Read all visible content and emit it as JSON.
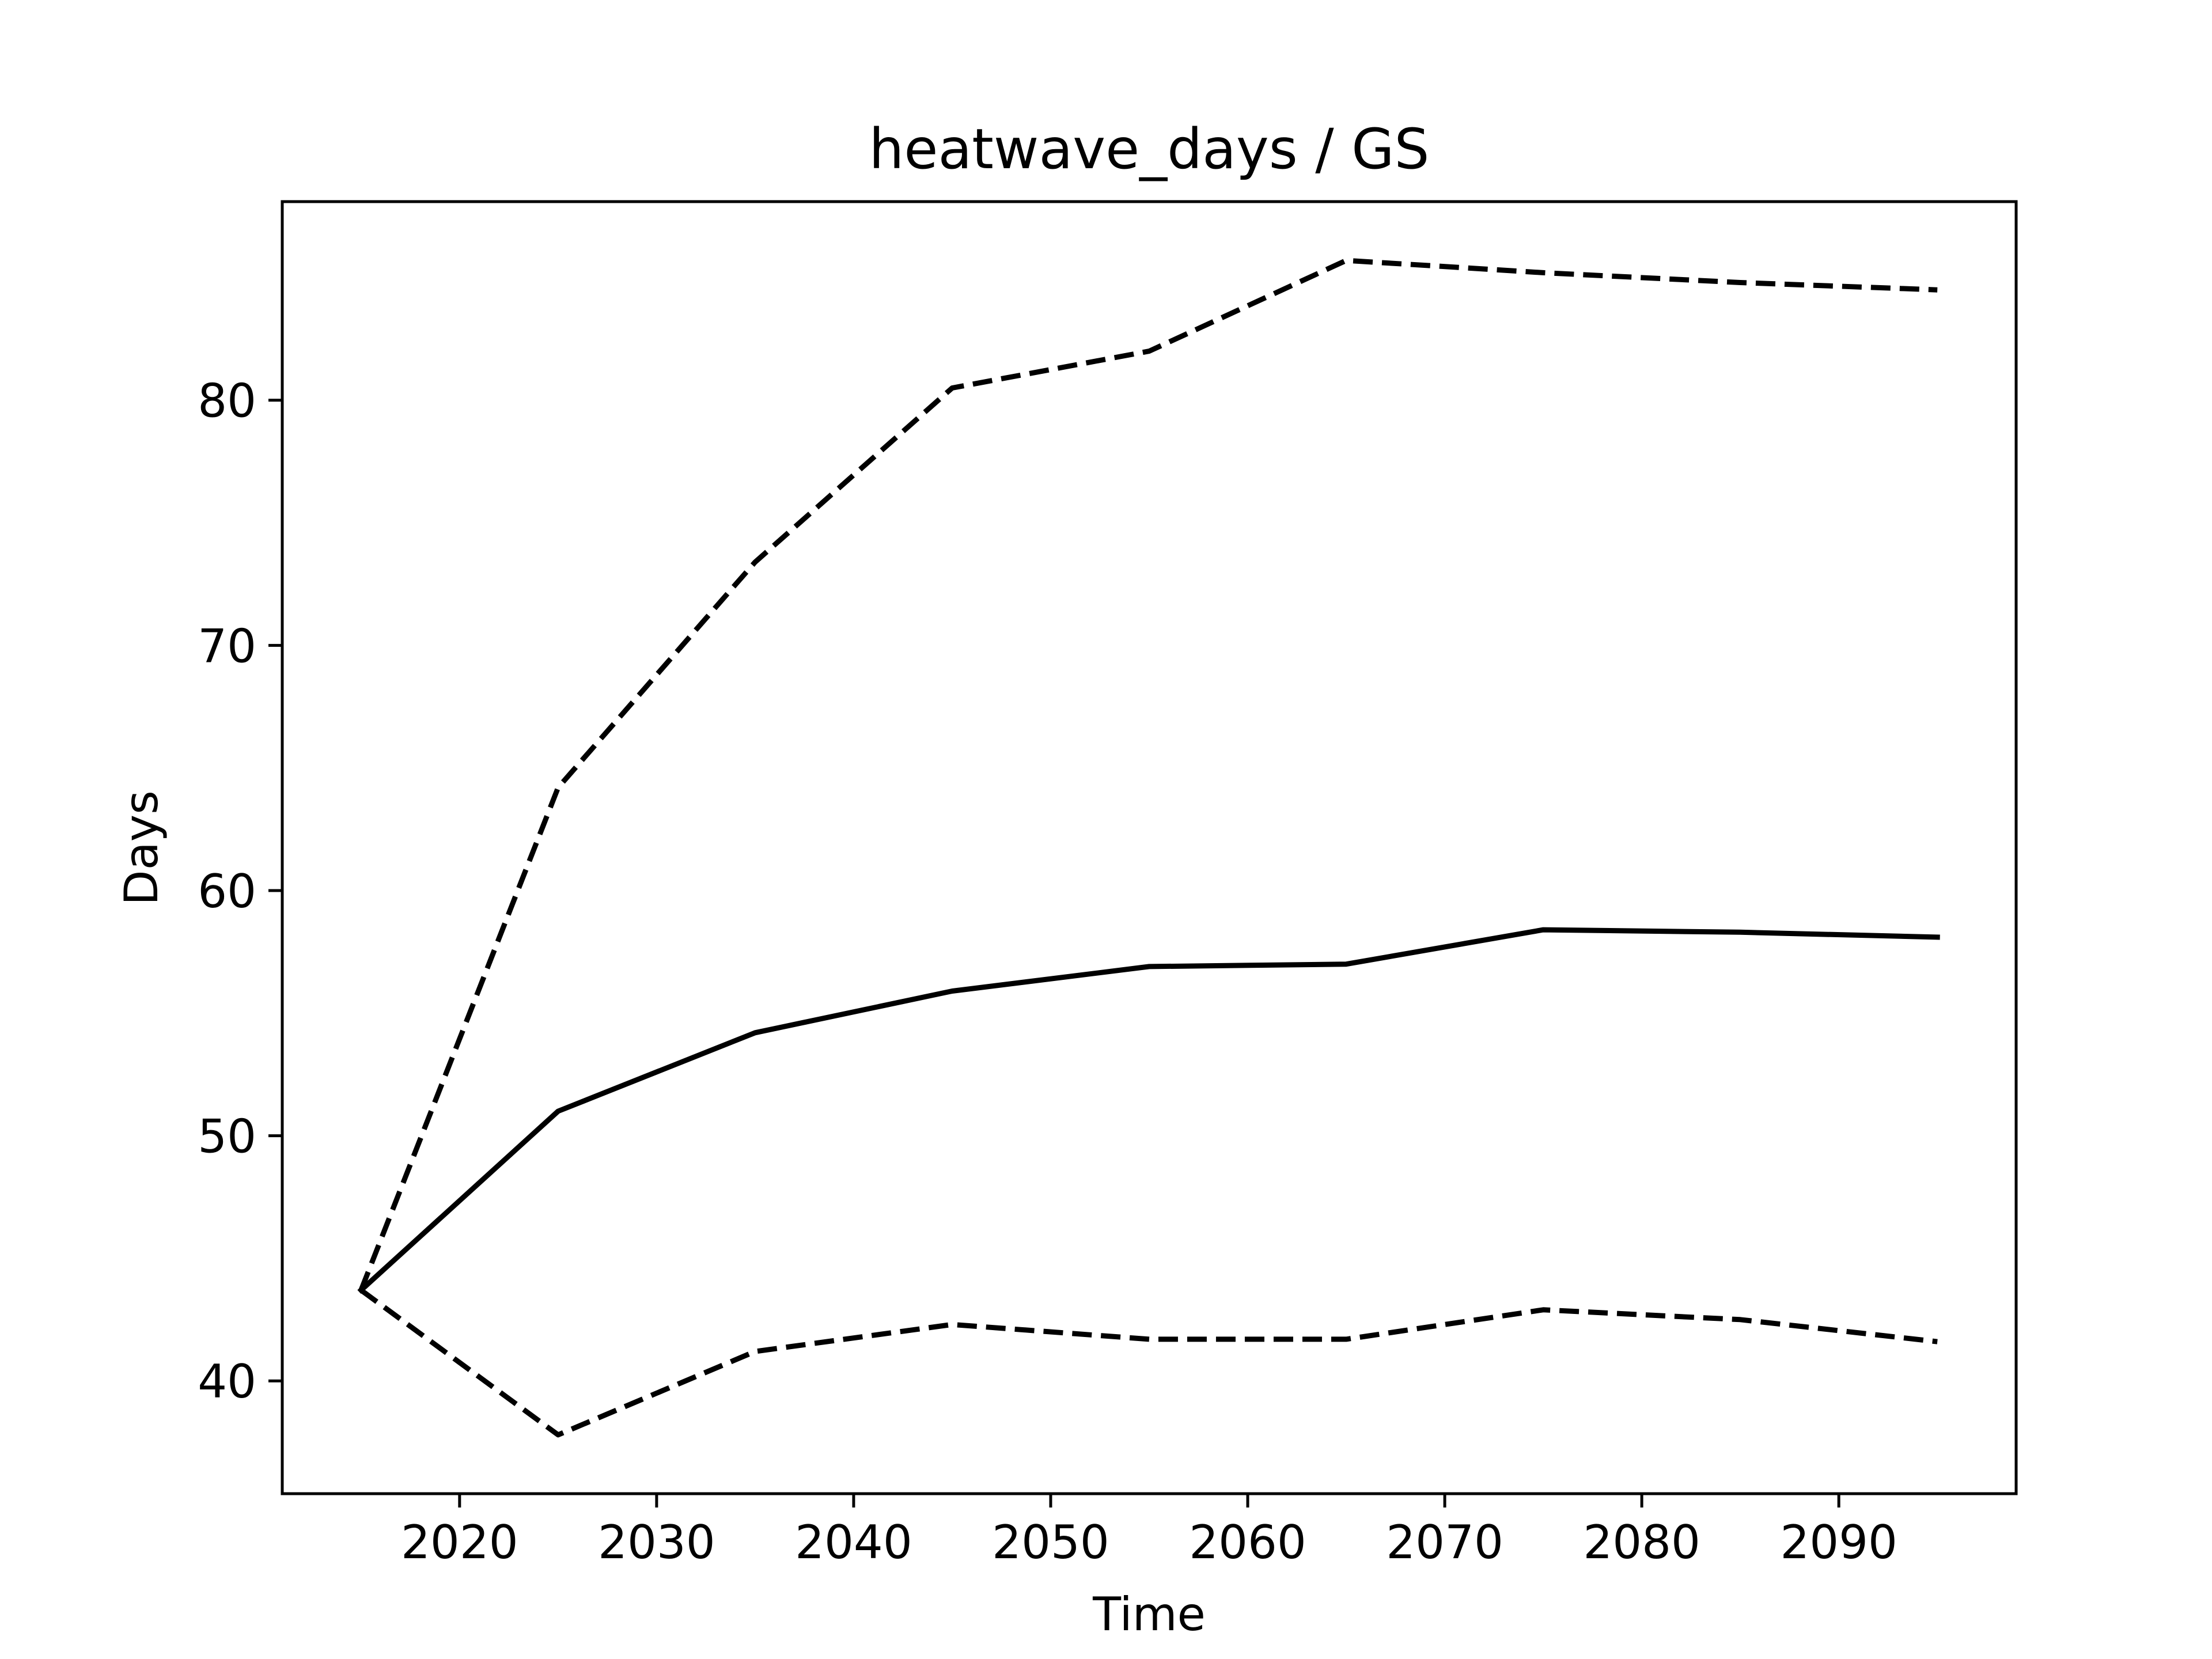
{
  "chart_data": {
    "type": "line",
    "title": "heatwave_days / GS",
    "xlabel": "Time",
    "ylabel": "Days",
    "xlim": [
      2011,
      2099
    ],
    "ylim": [
      35.4,
      88.1
    ],
    "xticks": [
      2020,
      2030,
      2040,
      2050,
      2060,
      2070,
      2080,
      2090
    ],
    "yticks": [
      40,
      50,
      60,
      70,
      80
    ],
    "x": [
      2015,
      2025,
      2035,
      2045,
      2055,
      2065,
      2075,
      2085,
      2095
    ],
    "grid": false,
    "legend": "none",
    "series": [
      {
        "style": "solid",
        "color": "#000000",
        "values": [
          43.7,
          51.0,
          54.2,
          55.9,
          56.9,
          57.0,
          58.4,
          58.3,
          58.1
        ]
      },
      {
        "style": "dashed",
        "color": "#000000",
        "values": [
          43.7,
          64.2,
          73.4,
          80.5,
          82.0,
          85.7,
          85.2,
          84.8,
          84.5
        ]
      },
      {
        "style": "dashed",
        "color": "#000000",
        "values": [
          43.7,
          37.8,
          41.2,
          42.3,
          41.7,
          41.7,
          42.9,
          42.5,
          41.6
        ]
      }
    ]
  }
}
